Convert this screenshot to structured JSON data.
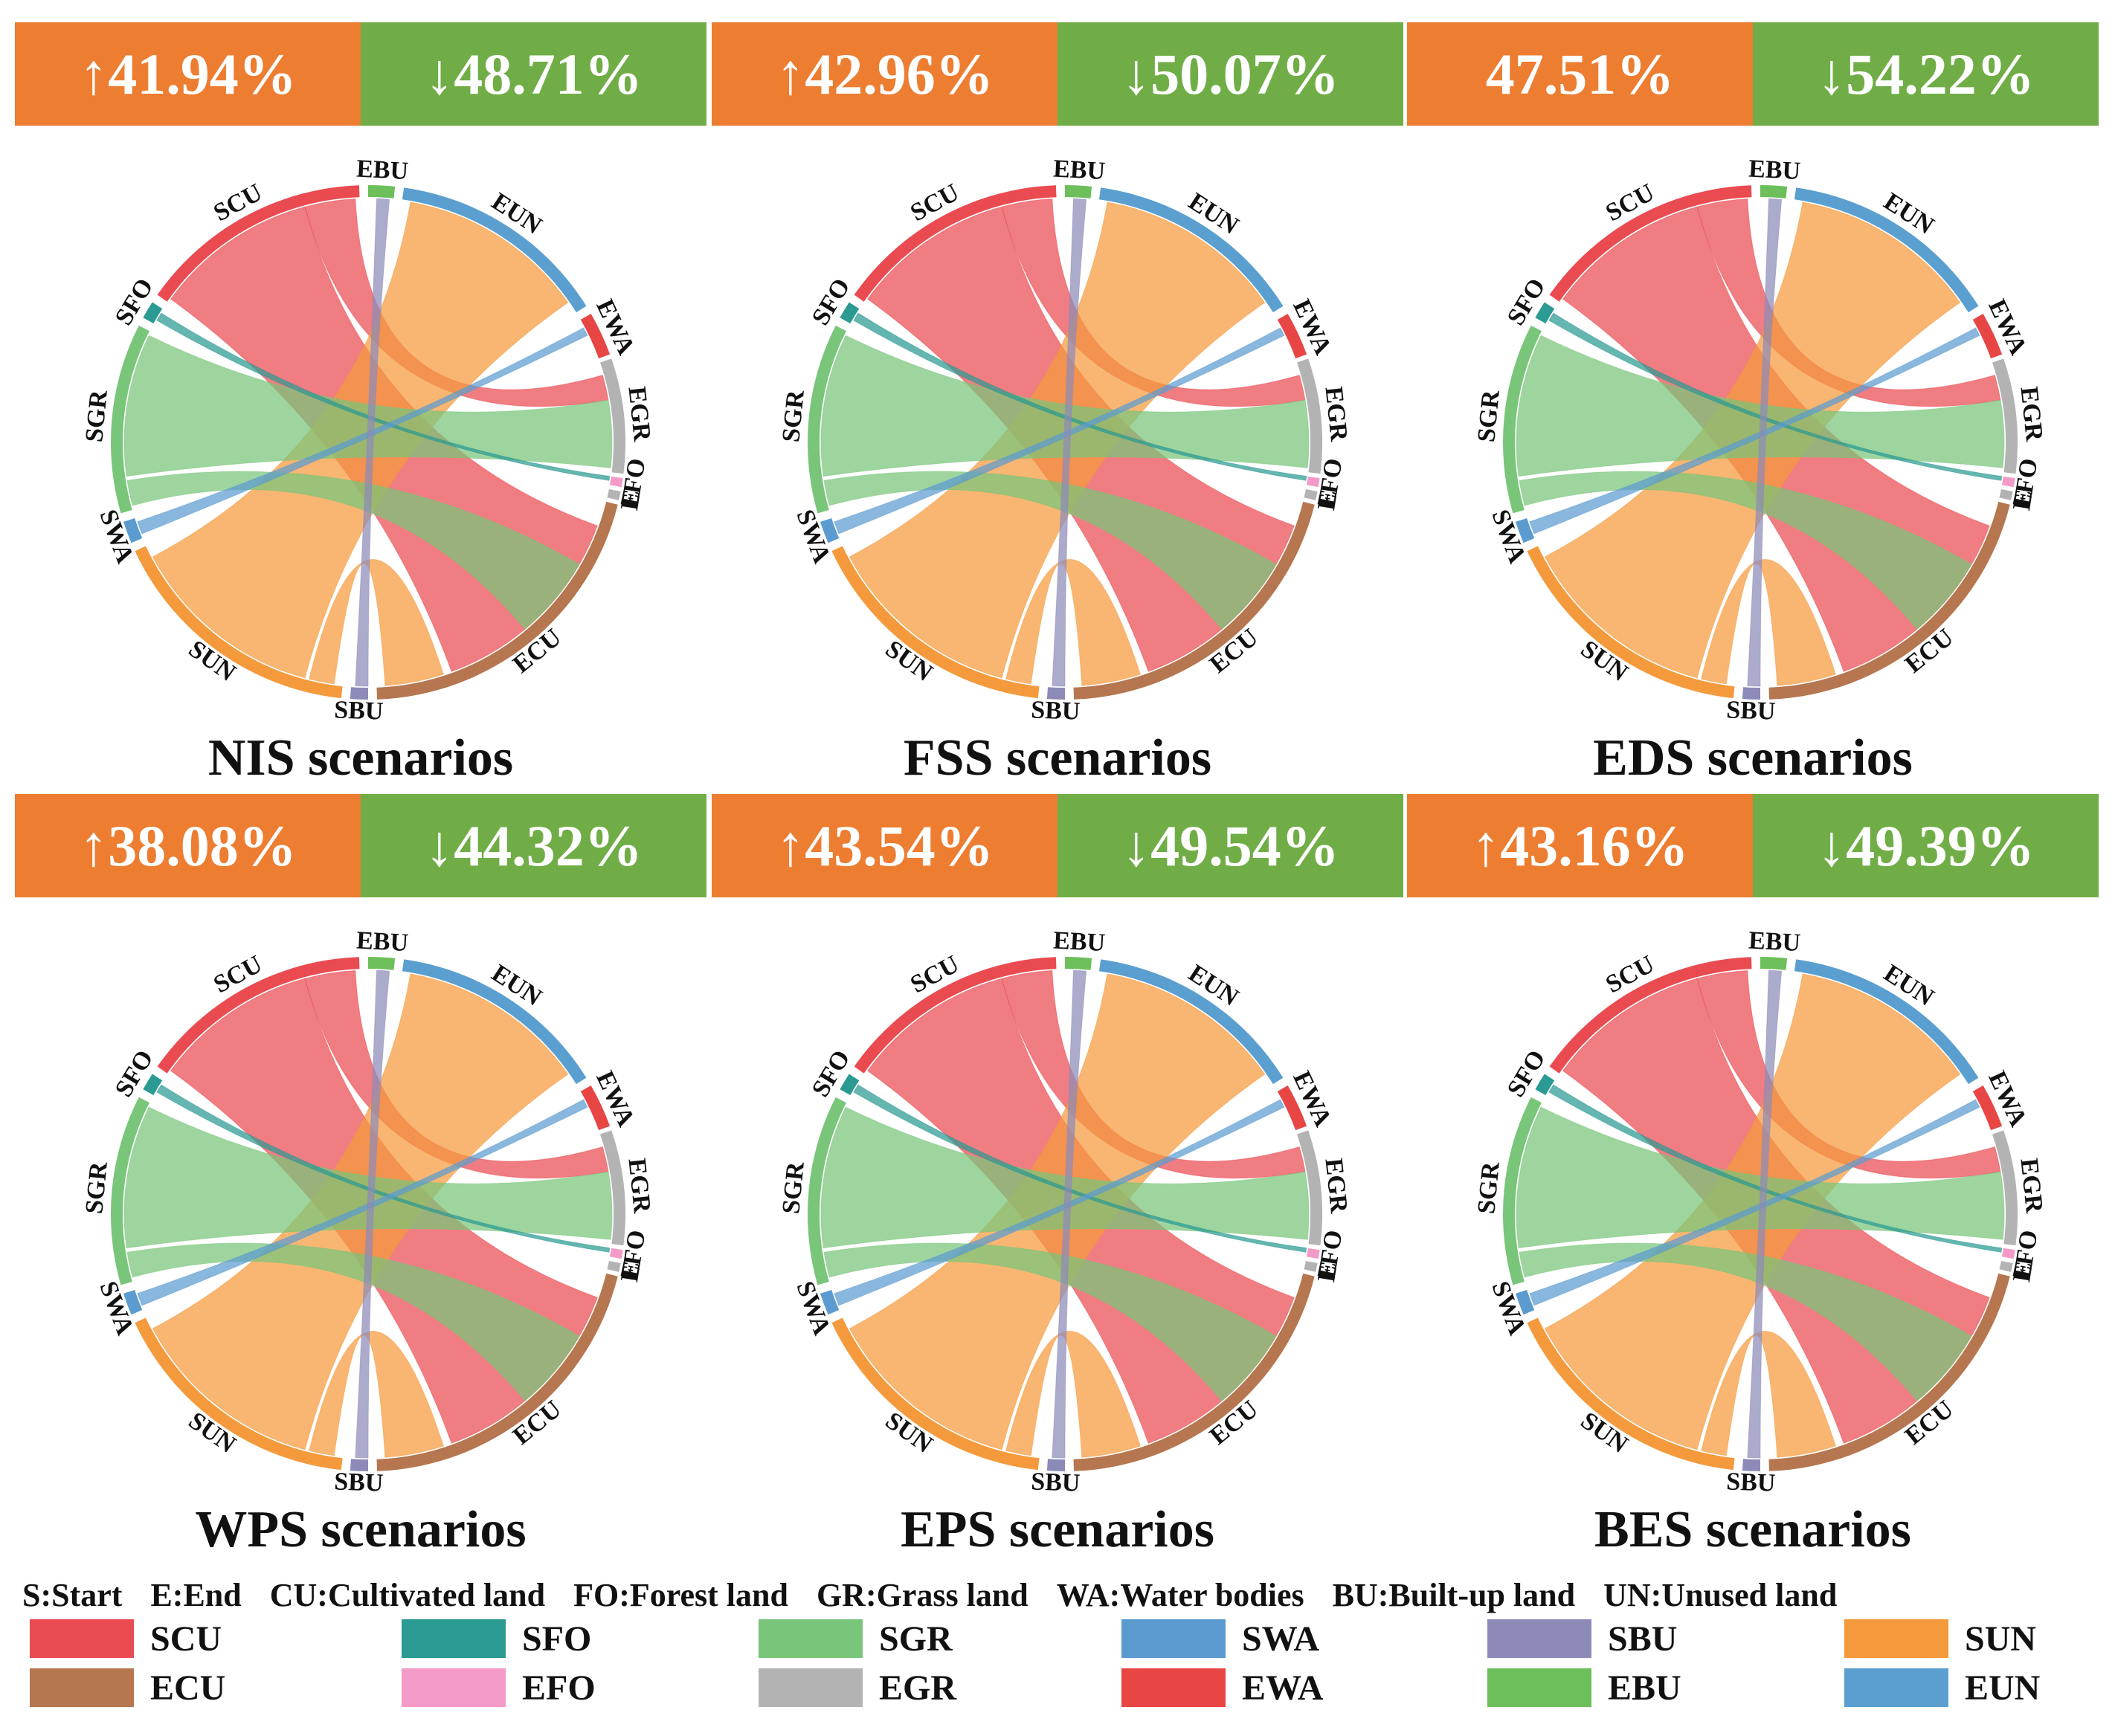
{
  "legend": {
    "definitions": [
      "S:Start",
      "E:End",
      "CU:Cultivated land",
      "FO:Forest land",
      "GR:Grass land",
      "WA:Water bodies",
      "BU:Built-up land",
      "UN:Unused land"
    ],
    "items": [
      {
        "code": "SCU",
        "color": "#ea4b51"
      },
      {
        "code": "SFO",
        "color": "#2a9a92"
      },
      {
        "code": "SGR",
        "color": "#79c57a"
      },
      {
        "code": "SWA",
        "color": "#5b9bd0"
      },
      {
        "code": "SBU",
        "color": "#8d8ab8"
      },
      {
        "code": "SUN",
        "color": "#f59a3c"
      },
      {
        "code": "ECU",
        "color": "#b6764f"
      },
      {
        "code": "EFO",
        "color": "#f49ac8"
      },
      {
        "code": "EGR",
        "color": "#b3b3b3"
      },
      {
        "code": "EWA",
        "color": "#e84545"
      },
      {
        "code": "EBU",
        "color": "#6cbf5b"
      },
      {
        "code": "EUN",
        "color": "#5a9fd0"
      }
    ]
  },
  "panels": [
    {
      "title": "NIS scenarios",
      "increase": "↑41.94%",
      "decrease": "↓48.71%"
    },
    {
      "title": "FSS scenarios",
      "increase": "↑42.96%",
      "decrease": "↓50.07%"
    },
    {
      "title": "EDS scenarios",
      "increase": "47.51%",
      "decrease": "↓54.22%"
    },
    {
      "title": "WPS scenarios",
      "increase": "↑38.08%",
      "decrease": "↓44.32%"
    },
    {
      "title": "EPS scenarios",
      "increase": "↑43.54%",
      "decrease": "↓49.54%"
    },
    {
      "title": "BES scenarios",
      "increase": "↑43.16%",
      "decrease": "↓49.39%"
    }
  ],
  "chart_data": {
    "type": "chord",
    "arcs": [
      {
        "label": "EBU",
        "start_deg": 0,
        "end_deg": 6,
        "color": "#6cbf5b"
      },
      {
        "label": "EUN",
        "start_deg": 8,
        "end_deg": 58,
        "color": "#5a9fd0"
      },
      {
        "label": "EWA",
        "start_deg": 60,
        "end_deg": 70,
        "color": "#e84545"
      },
      {
        "label": "EGR",
        "start_deg": 71,
        "end_deg": 97,
        "color": "#b3b3b3"
      },
      {
        "label": "EFO",
        "start_deg": 98,
        "end_deg": 100,
        "color": "#f49ac8"
      },
      {
        "label": "E",
        "start_deg": 101,
        "end_deg": 103,
        "color": "#b3b3b3"
      },
      {
        "label": "ECU",
        "start_deg": 104,
        "end_deg": 178,
        "color": "#b6764f"
      },
      {
        "label": "SBU",
        "start_deg": 180,
        "end_deg": 184,
        "color": "#8d8ab8"
      },
      {
        "label": "SUN",
        "start_deg": 186,
        "end_deg": 245,
        "color": "#f59a3c"
      },
      {
        "label": "SWA",
        "start_deg": 247,
        "end_deg": 252,
        "color": "#5b9bd0"
      },
      {
        "label": "SGR",
        "start_deg": 254,
        "end_deg": 297,
        "color": "#79c57a"
      },
      {
        "label": "SFO",
        "start_deg": 299,
        "end_deg": 303,
        "color": "#2a9a92"
      },
      {
        "label": "SCU",
        "start_deg": 305,
        "end_deg": 358,
        "color": "#ea4b51"
      }
    ],
    "flows": [
      {
        "from": "SCU",
        "to": "ECU",
        "a": [
          306,
          345
        ],
        "b": [
          110,
          160
        ],
        "color": "#ea4b51"
      },
      {
        "from": "SCU",
        "to": "EGR",
        "a": [
          345,
          357
        ],
        "b": [
          74,
          80
        ],
        "color": "#ea4b51"
      },
      {
        "from": "SUN",
        "to": "EUN",
        "a": [
          195,
          242
        ],
        "b": [
          10,
          55
        ],
        "color": "#f59a3c"
      },
      {
        "from": "SUN",
        "to": "ECU",
        "a": [
          188,
          194
        ],
        "b": [
          162,
          176
        ],
        "color": "#f59a3c"
      },
      {
        "from": "SGR",
        "to": "EGR",
        "a": [
          262,
          296
        ],
        "b": [
          80,
          96
        ],
        "color": "#79c57a"
      },
      {
        "from": "SGR",
        "to": "ECU",
        "a": [
          255,
          261
        ],
        "b": [
          120,
          140
        ],
        "color": "#79c57a"
      },
      {
        "from": "SFO",
        "to": "EFO",
        "a": [
          300,
          302
        ],
        "b": [
          98,
          99
        ],
        "color": "#2a9a92"
      },
      {
        "from": "SWA",
        "to": "EWA",
        "a": [
          248,
          251
        ],
        "b": [
          62,
          64
        ],
        "color": "#5b9bd0"
      },
      {
        "from": "SBU",
        "to": "EBU",
        "a": [
          180,
          183
        ],
        "b": [
          2,
          5
        ],
        "color": "#8d8ab8"
      }
    ]
  }
}
